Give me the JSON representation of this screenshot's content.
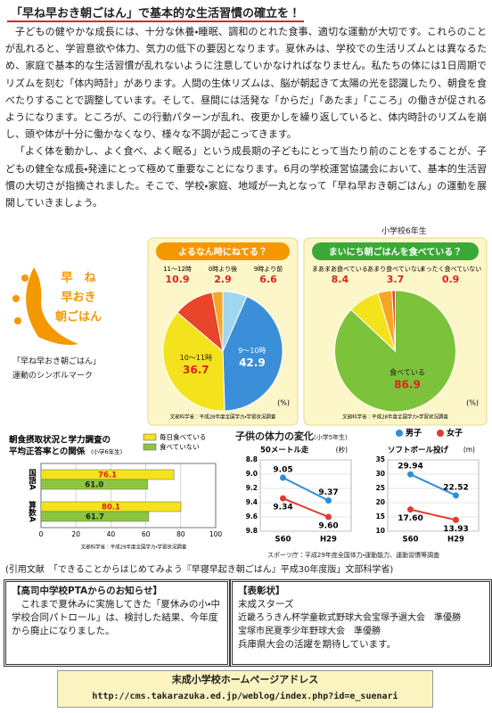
{
  "header": {
    "title": "「早ね早おき朝ごはん」で基本的な生活習慣の確立を！"
  },
  "body": {
    "paragraphs": [
      "子どもの健やかな成長には、十分な休養・睡眠、調和のとれた食事、適切な運動が大切です。これらのことが乱れると、学習意欲や体力、気力の低下の要因となります。夏休みは、学校での生活リズムとは異なるため、家庭で基本的な生活習慣が乱れないように注意していかなければなりません。私たちの体には1日周期でリズムを刻む「体内時計」があります。人間の生体リズムは、脳が朝起きて太陽の光を認識したり、朝食を食べたりすることで調整しています。そして、昼間には活発な「からだ」「あたま」「こころ」の働きが促されるようになります。ところが、この行動パターンが乱れ、夜更かしを繰り返していると、体内時計のリズムを崩し、頭や体が十分に働かなくなり、様々な不調が起こってきます。",
      "「よく体を動かし、よく食べ、よく眠る」という成長期の子どもにとって当たり前のことをすることが、子どもの健全な成長・発達にとって極めて重要なことになります。6月の学校運営協議会において、基本的生活習慣の大切さが指摘されました。そこで、学校・家庭、地域が一丸となって「早ね早おき朝ごはん」の運動を展開していきましょう。"
    ]
  },
  "grade_note": "小学校6年生",
  "logo": {
    "lines": [
      "早　ね",
      "早おき",
      "朝ごはん"
    ],
    "caption": [
      "「早ね早おき朝ごはん」",
      "運動のシンボルマーク"
    ]
  },
  "fitness": {
    "title": "子供の体力の変化",
    "subtitle": "(小学5年生)",
    "source": "スポーツ庁：平成29年度全国体力・運動能力、運動習慣等調査"
  },
  "chart_data": [
    {
      "type": "pie",
      "title": "よるなん時にねてる？",
      "banner_color": "#f39800",
      "categories": [
        "9時より前",
        "9〜10時",
        "10〜11時",
        "11〜12時",
        "0時より後"
      ],
      "values": [
        6.6,
        42.9,
        36.7,
        10.9,
        2.9
      ],
      "colors": [
        "#9fd6f0",
        "#3a8fd8",
        "#f4e21c",
        "#e8452a",
        "#f5a623"
      ],
      "unit": "(%)",
      "source": "文部科学省：平成28年度全国学力・学習状況調査"
    },
    {
      "type": "pie",
      "title": "まいにち朝ごはんを食べている？",
      "banner_color": "#3aa935",
      "categories": [
        "食べている",
        "まあまあ食べている",
        "あまり食べていない",
        "まったく食べていない"
      ],
      "values": [
        86.9,
        8.4,
        3.7,
        0.9
      ],
      "colors": [
        "#7cc23a",
        "#f4e21c",
        "#f5a623",
        "#e8452a"
      ],
      "unit": "(%)",
      "source": "文部科学省：平成28年度全国学力・学習状況調査"
    },
    {
      "type": "barh",
      "title": [
        "朝食摂取状況と学力調査の",
        "平均正答率との関係"
      ],
      "subtitle": "(小学6年生)",
      "categories": [
        "国語A",
        "算数A"
      ],
      "series": [
        {
          "name": "毎日食べている",
          "color": "#f4e21c",
          "values": [
            76.1,
            80.1
          ]
        },
        {
          "name": "食べていない",
          "color": "#8cc63f",
          "values": [
            61.0,
            61.7
          ],
          "value_labels": [
            "61.0",
            "61.7"
          ]
        }
      ],
      "xlim": [
        0,
        100
      ],
      "xticks": [
        0,
        20,
        40,
        60,
        80,
        100
      ],
      "grid": true,
      "legend": "upper right",
      "source": "文部科学省：平成29年度全国学力・学習状況調査"
    },
    {
      "type": "line",
      "title": "50メートル走",
      "y_label": "(秒)",
      "categories": [
        "S60",
        "H29"
      ],
      "series": [
        {
          "name": "男子",
          "color": "#2e8fd8",
          "values": [
            9.05,
            9.37
          ]
        },
        {
          "name": "女子",
          "color": "#e03a2f",
          "values": [
            9.34,
            9.6
          ],
          "value_labels": [
            "9.34",
            "9.60"
          ]
        }
      ],
      "ylim": [
        9.8,
        8.8
      ],
      "yticks": [
        9.8,
        9.6,
        9.4,
        9.2,
        {
          "value": 9,
          "label": "9.0"
        },
        8.8
      ],
      "grid": true,
      "legend": "upper right"
    },
    {
      "type": "line",
      "title": "ソフトボール投げ",
      "y_label": "(m)",
      "categories": [
        "S60",
        "H29"
      ],
      "series": [
        {
          "name": "男子",
          "color": "#2e8fd8",
          "values": [
            29.94,
            22.52
          ]
        },
        {
          "name": "女子",
          "color": "#e03a2f",
          "values": [
            17.6,
            13.93
          ],
          "value_labels": [
            "17.60",
            "13.93"
          ]
        }
      ],
      "ylim": [
        10,
        35
      ],
      "yticks": [
        10,
        15,
        20,
        25,
        30,
        35
      ],
      "grid": true
    }
  ],
  "citation": "(引用文献　「できることからはじめてみよう『早寝早起き朝ごはん』平成30年度版」文部科学省)",
  "notice": {
    "title": "【高司中学校PTAからのお知らせ】",
    "body": "これまで夏休みに実施してきた「夏休みの小・中学校合同パトロール」は、検討した結果、今年度から廃止になりました。"
  },
  "award": {
    "title": "【表彰状】",
    "team": "末成スターズ",
    "lines": [
      "近畿ろうきん杯学童軟式野球大会宝塚予選大会　準優勝",
      "宝塚市民夏季少年野球大会　準優勝"
    ],
    "closing": "兵庫県大会の活躍を期待しています。"
  },
  "footer": {
    "title": "末成小学校ホームページアドレス",
    "url": "http://cms.takarazuka.ed.jp/weblog/index.php?id=e_suenari"
  }
}
